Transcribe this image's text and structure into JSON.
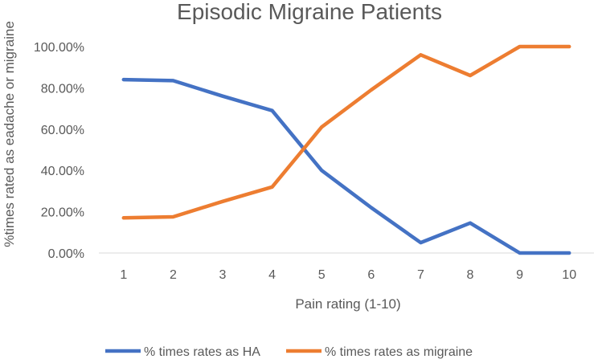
{
  "chart_data": {
    "type": "line",
    "title": "Episodic Migraine Patients",
    "xlabel": "Pain rating (1-10)",
    "ylabel": "%times rated as eadache or migraine",
    "categories": [
      "1",
      "2",
      "3",
      "4",
      "5",
      "6",
      "7",
      "8",
      "9",
      "10"
    ],
    "ylim": [
      0,
      100
    ],
    "y_ticks": [
      0,
      20,
      40,
      60,
      80,
      100
    ],
    "y_tick_labels": [
      "0.00%",
      "20.00%",
      "40.00%",
      "60.00%",
      "80.00%",
      "100.00%"
    ],
    "legend_position": "bottom",
    "grid": false,
    "series": [
      {
        "name": "% times rates as HA",
        "color": "#4472C4",
        "values": [
          84,
          83.5,
          76,
          69,
          40,
          22,
          5,
          14.5,
          0,
          0
        ]
      },
      {
        "name": "% times rates as migraine",
        "color": "#ED7D31",
        "values": [
          17,
          17.5,
          25,
          32,
          61,
          79,
          96,
          86,
          100,
          100
        ]
      }
    ]
  }
}
